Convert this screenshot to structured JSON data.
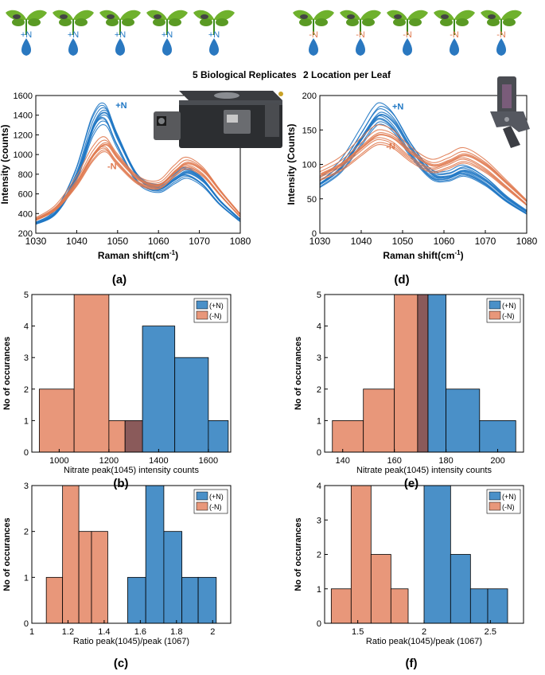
{
  "header": {
    "left_labels": [
      "+N",
      "+N",
      "+N",
      "+N",
      "+N"
    ],
    "right_labels": [
      "-N",
      "-N",
      "-N",
      "-N",
      "-N"
    ],
    "left_caption": "5 Biological Replicates",
    "right_caption": "2 Location per Leaf"
  },
  "colors": {
    "plusN": "#1f77c4",
    "minusN": "#e07a50",
    "barBlue": "#4a90c8",
    "barOrange": "#e8977a",
    "overlap": "#8a5a5a",
    "sprout": "#6fb12d",
    "drop": "#2a78c0"
  },
  "chart_data": [
    {
      "id": "a",
      "type": "line",
      "panel_label": "(a)",
      "xlabel": "Raman shift(cm",
      "xlabel_sup": "-1",
      "xlabel_close": ")",
      "ylabel": "Intensity (counts)",
      "xlim": [
        1030,
        1080
      ],
      "ylim": [
        200,
        1600
      ],
      "xticks": [
        1030,
        1040,
        1050,
        1060,
        1070,
        1080
      ],
      "yticks": [
        200,
        400,
        600,
        800,
        1000,
        1200,
        1400,
        1600
      ],
      "annotations": [
        {
          "text": "+N",
          "x": 1049.5,
          "y": 1470,
          "series": "plus"
        },
        {
          "text": "-N",
          "x": 1047.5,
          "y": 850,
          "series": "minus"
        }
      ],
      "groups": [
        {
          "name": "+N",
          "color": "plus",
          "base": [
            [
              1030,
              300
            ],
            [
              1035,
              420
            ],
            [
              1040,
              800
            ],
            [
              1044,
              1300
            ],
            [
              1047,
              1420
            ],
            [
              1050,
              1150
            ],
            [
              1055,
              760
            ],
            [
              1060,
              660
            ],
            [
              1064,
              760
            ],
            [
              1067,
              820
            ],
            [
              1071,
              720
            ],
            [
              1075,
              520
            ],
            [
              1080,
              330
            ]
          ],
          "scales": [
            1.08,
            1.04,
            1.0,
            0.96,
            0.93,
            0.98,
            1.06,
            0.9,
            1.02,
            0.95
          ]
        },
        {
          "name": "-N",
          "color": "minus",
          "base": [
            [
              1030,
              340
            ],
            [
              1035,
              460
            ],
            [
              1040,
              720
            ],
            [
              1044,
              1000
            ],
            [
              1047,
              1100
            ],
            [
              1050,
              950
            ],
            [
              1055,
              740
            ],
            [
              1060,
              690
            ],
            [
              1064,
              830
            ],
            [
              1067,
              910
            ],
            [
              1071,
              820
            ],
            [
              1075,
              620
            ],
            [
              1080,
              380
            ]
          ],
          "scales": [
            1.09,
            1.05,
            1.0,
            0.96,
            0.92,
            1.02,
            0.98,
            0.94
          ]
        }
      ]
    },
    {
      "id": "d",
      "type": "line",
      "panel_label": "(d)",
      "xlabel": "Raman shift(cm",
      "xlabel_sup": "-1",
      "xlabel_close": ")",
      "ylabel": "Intensity (Counts)",
      "xlim": [
        1030,
        1080
      ],
      "ylim": [
        0,
        200
      ],
      "xticks": [
        1030,
        1040,
        1050,
        1060,
        1070,
        1080
      ],
      "yticks": [
        0,
        50,
        100,
        150,
        200
      ],
      "annotations": [
        {
          "text": "+N",
          "x": 1047.5,
          "y": 180,
          "series": "plus"
        },
        {
          "text": "-N",
          "x": 1046,
          "y": 122,
          "series": "minus"
        }
      ],
      "groups": [
        {
          "name": "+N",
          "color": "plus",
          "base": [
            [
              1030,
              72
            ],
            [
              1035,
              95
            ],
            [
              1040,
              138
            ],
            [
              1043,
              165
            ],
            [
              1045,
              172
            ],
            [
              1048,
              158
            ],
            [
              1052,
              120
            ],
            [
              1057,
              85
            ],
            [
              1061,
              82
            ],
            [
              1065,
              90
            ],
            [
              1070,
              75
            ],
            [
              1075,
              50
            ],
            [
              1080,
              30
            ]
          ],
          "scales": [
            1.1,
            1.05,
            1.0,
            0.96,
            0.92,
            1.02,
            0.97,
            0.94,
            1.07,
            0.99
          ]
        },
        {
          "name": "-N",
          "color": "minus",
          "base": [
            [
              1030,
              85
            ],
            [
              1035,
              100
            ],
            [
              1040,
              125
            ],
            [
              1043,
              140
            ],
            [
              1045,
              143
            ],
            [
              1048,
              136
            ],
            [
              1052,
              115
            ],
            [
              1057,
              98
            ],
            [
              1061,
              104
            ],
            [
              1065,
              113
            ],
            [
              1070,
              98
            ],
            [
              1075,
              72
            ],
            [
              1080,
              45
            ]
          ],
          "scales": [
            1.1,
            1.05,
            1.0,
            0.95,
            0.92,
            1.02,
            0.97,
            0.9
          ]
        }
      ]
    },
    {
      "id": "b",
      "type": "bar",
      "panel_label": "(b)",
      "xlabel": "Nitrate peak(1045) intensity counts",
      "ylabel": "No of occurances",
      "xlim": [
        890,
        1690
      ],
      "ylim": [
        0,
        5
      ],
      "xticks": [
        1000,
        1200,
        1400,
        1600
      ],
      "yticks": [
        0,
        1,
        2,
        3,
        4,
        5
      ],
      "legend": [
        "(+N)",
        "(-N)"
      ],
      "legend_position": "top-right",
      "series": [
        {
          "name": "(+N)",
          "color": "blue",
          "bins": [
            [
              1265,
              1335,
              1
            ],
            [
              1335,
              1465,
              4
            ],
            [
              1465,
              1600,
              3
            ],
            [
              1600,
              1680,
              1
            ]
          ]
        },
        {
          "name": "(-N)",
          "color": "orange",
          "bins": [
            [
              920,
              1060,
              2
            ],
            [
              1060,
              1200,
              5
            ],
            [
              1200,
              1335,
              1
            ]
          ]
        }
      ]
    },
    {
      "id": "e",
      "type": "bar",
      "panel_label": "(e)",
      "xlabel": "Nitrate peak(1045) intensity counts",
      "ylabel": "No of occurances",
      "xlim": [
        133,
        210
      ],
      "ylim": [
        0,
        5
      ],
      "xticks": [
        140,
        160,
        180,
        200
      ],
      "yticks": [
        0,
        1,
        2,
        3,
        4,
        5
      ],
      "legend": [
        "(+N)",
        "(-N)"
      ],
      "legend_position": "top-right",
      "series": [
        {
          "name": "(+N)",
          "color": "blue",
          "bins": [
            [
              169,
              173,
              5
            ],
            [
              173,
              180,
              5
            ],
            [
              180,
              193,
              2
            ],
            [
              193,
              207,
              1
            ]
          ]
        },
        {
          "name": "(-N)",
          "color": "orange",
          "bins": [
            [
              136,
              148,
              1
            ],
            [
              148,
              160,
              2
            ],
            [
              160,
              169,
              5
            ],
            [
              169,
              173,
              5
            ]
          ]
        }
      ]
    },
    {
      "id": "c",
      "type": "bar",
      "panel_label": "(c)",
      "xlabel": "Ratio peak(1045)/peak (1067)",
      "ylabel": "No of occurances",
      "xlim": [
        1.0,
        2.1
      ],
      "ylim": [
        0,
        3
      ],
      "xticks": [
        1,
        1.2,
        1.4,
        1.6,
        1.8,
        2
      ],
      "yticks": [
        0,
        1,
        2,
        3
      ],
      "legend": [
        "(+N)",
        "(-N)"
      ],
      "legend_position": "top-right",
      "series": [
        {
          "name": "(+N)",
          "color": "blue",
          "bins": [
            [
              1.53,
              1.63,
              1
            ],
            [
              1.63,
              1.73,
              3
            ],
            [
              1.73,
              1.83,
              2
            ],
            [
              1.83,
              1.92,
              1
            ],
            [
              1.92,
              2.02,
              1
            ]
          ]
        },
        {
          "name": "(-N)",
          "color": "orange",
          "bins": [
            [
              1.08,
              1.17,
              1
            ],
            [
              1.17,
              1.26,
              3
            ],
            [
              1.26,
              1.33,
              2
            ],
            [
              1.33,
              1.42,
              2
            ]
          ]
        }
      ]
    },
    {
      "id": "f",
      "type": "bar",
      "panel_label": "(f)",
      "xlabel": "Ratio peak(1045)/peak (1067)",
      "ylabel": "No of occurances",
      "xlim": [
        1.25,
        2.75
      ],
      "ylim": [
        0,
        4
      ],
      "xticks": [
        1.5,
        2,
        2.5
      ],
      "yticks": [
        0,
        1,
        2,
        3,
        4
      ],
      "legend": [
        "(+N)",
        "(-N)"
      ],
      "legend_position": "top-right",
      "series": [
        {
          "name": "(+N)",
          "color": "blue",
          "bins": [
            [
              2.0,
              2.2,
              4
            ],
            [
              2.2,
              2.35,
              2
            ],
            [
              2.35,
              2.48,
              1
            ],
            [
              2.48,
              2.63,
              1
            ]
          ]
        },
        {
          "name": "(-N)",
          "color": "orange",
          "bins": [
            [
              1.3,
              1.45,
              1
            ],
            [
              1.45,
              1.6,
              4
            ],
            [
              1.6,
              1.75,
              2
            ],
            [
              1.75,
              1.88,
              1
            ]
          ]
        }
      ]
    }
  ]
}
